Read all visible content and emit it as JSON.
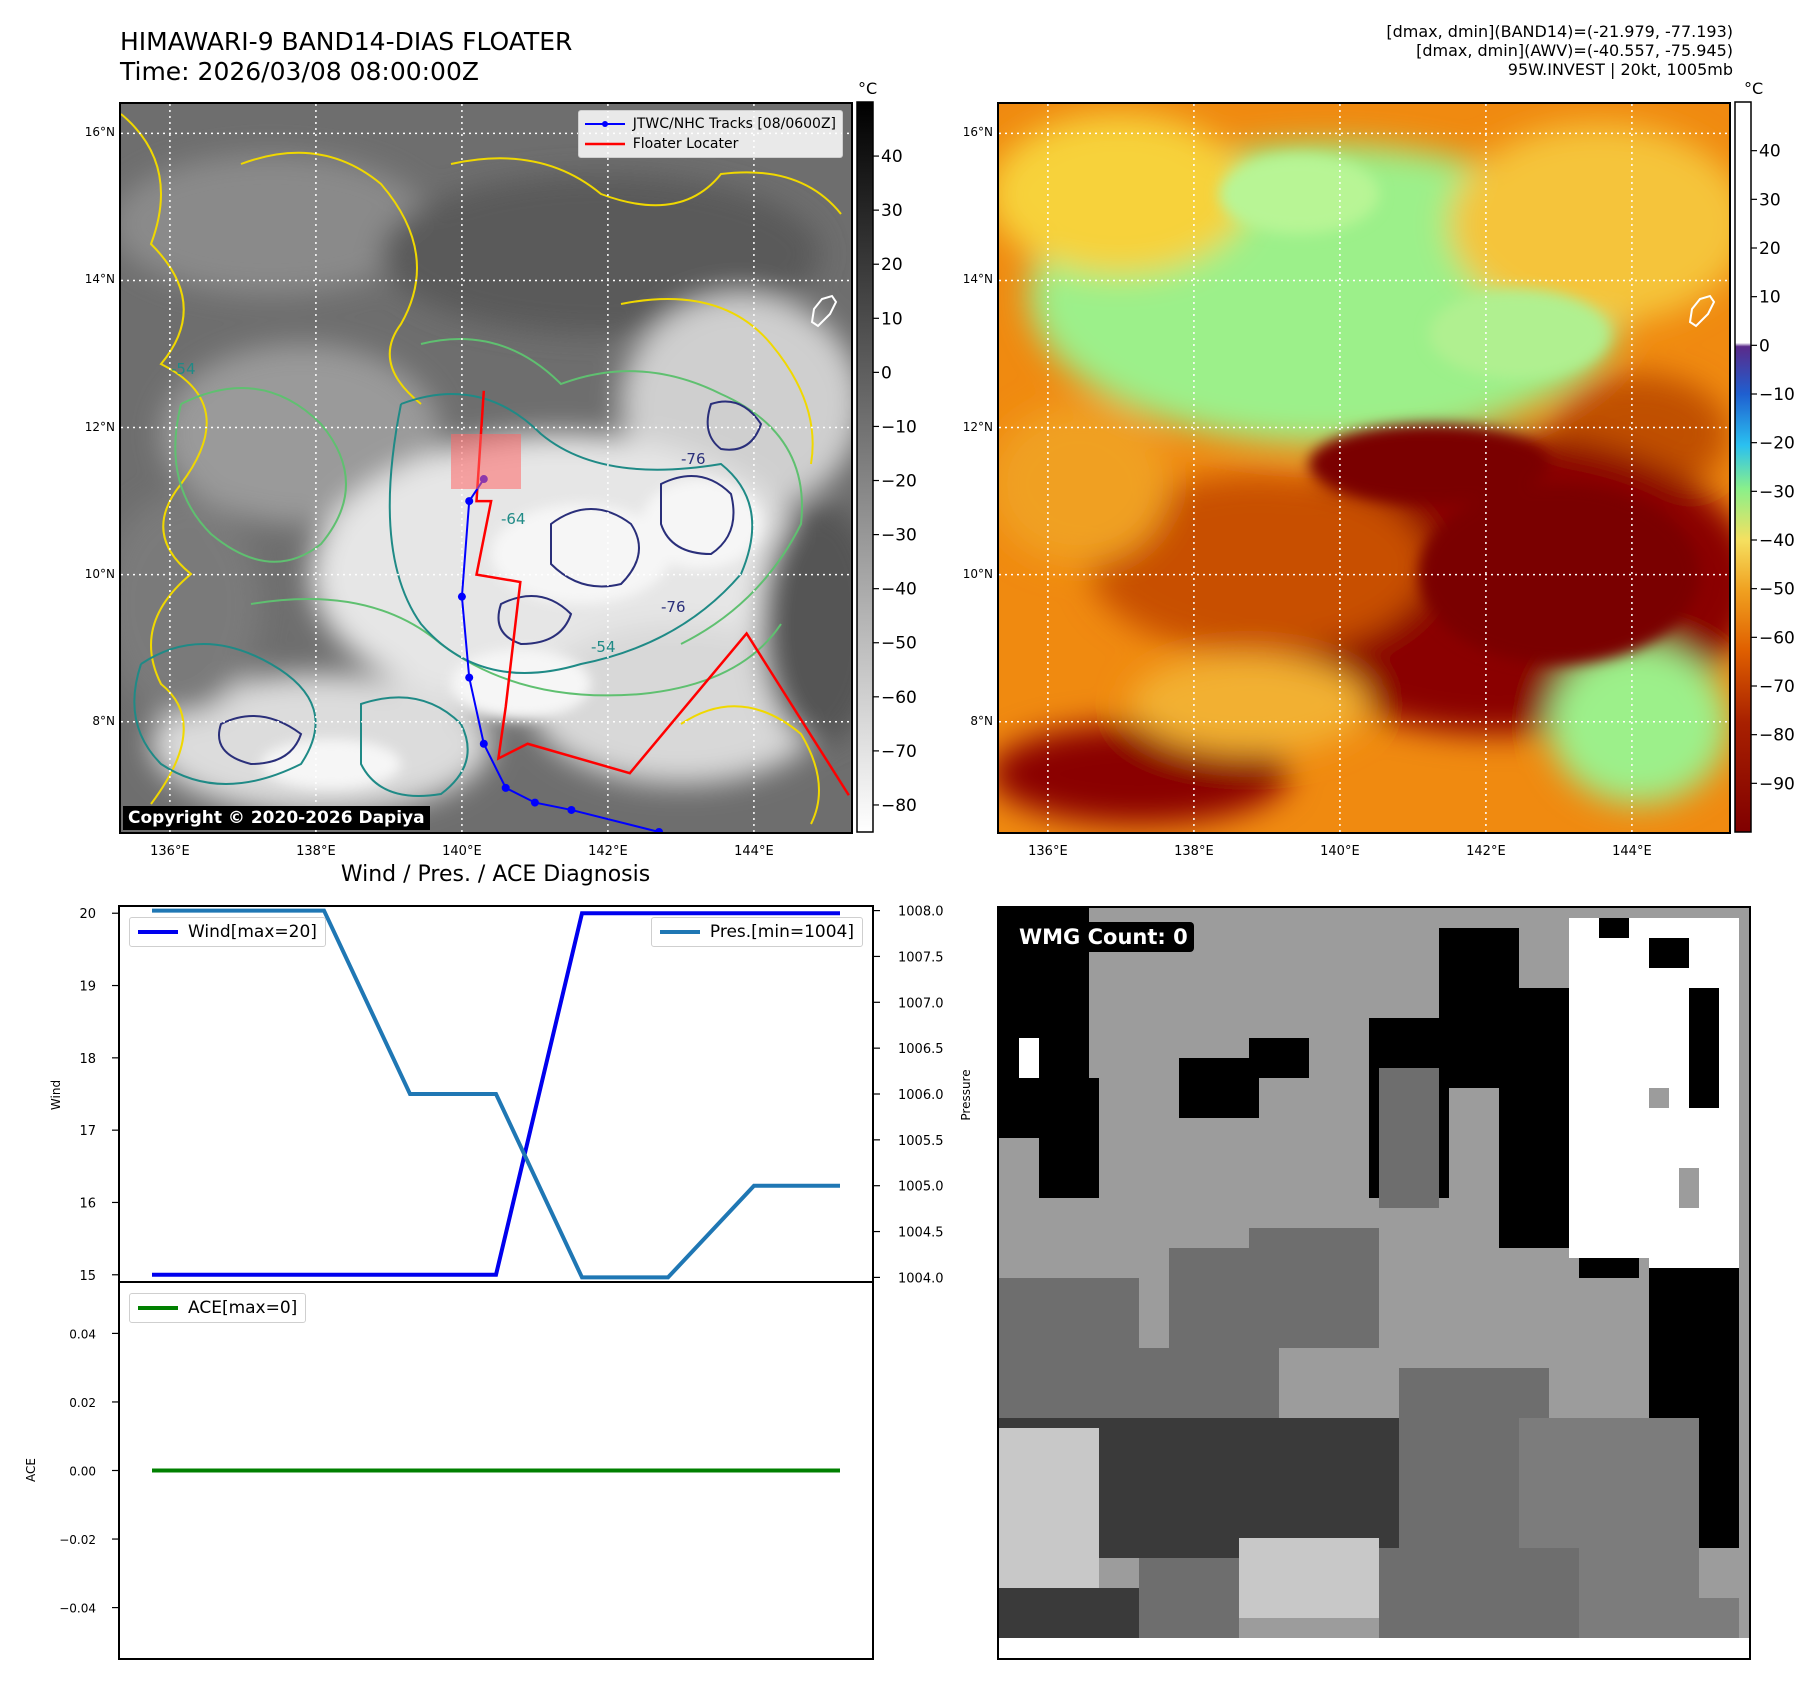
{
  "header": {
    "title": "HIMAWARI-9 BAND14-DIAS FLOATER",
    "time": "Time: 2026/03/08 08:00:00Z",
    "info_lines": [
      "[dmax, dmin](BAND14)=(-21.979, -77.193)",
      "[dmax, dmin](AWV)=(-40.557, -75.945)",
      "95W.INVEST | 20kt, 1005mb"
    ]
  },
  "map_axes": {
    "lon_labels": [
      "136°E",
      "138°E",
      "140°E",
      "142°E",
      "144°E"
    ],
    "lon_values": [
      136,
      138,
      140,
      142,
      144
    ],
    "lat_labels": [
      "16°N",
      "14°N",
      "12°N",
      "10°N",
      "8°N"
    ],
    "lat_values": [
      16,
      14,
      12,
      10,
      8
    ],
    "lon_range": [
      135.33,
      145.33
    ],
    "lat_range": [
      6.5,
      16.4
    ]
  },
  "ir_panel": {
    "legend": [
      {
        "label": "JTWC/NHC Tracks [08/0600Z]",
        "color": "#0000ff"
      },
      {
        "label": "Floater Locater",
        "color": "#ff0000"
      }
    ],
    "copyright": "Copyright © 2020-2026 Dapiya",
    "colorbar_unit": "°C",
    "colorbar_ticks": [
      "40",
      "30",
      "20",
      "10",
      "0",
      "−10",
      "−20",
      "−30",
      "−40",
      "−50",
      "−60",
      "−70",
      "−80"
    ],
    "colorbar_values": [
      40,
      30,
      20,
      10,
      0,
      -10,
      -20,
      -30,
      -40,
      -50,
      -60,
      -70,
      -80
    ],
    "colorbar_range": [
      -85,
      50
    ],
    "contour_labels": [
      "-54",
      "-64",
      "-76"
    ],
    "track_points": [
      [
        140.3,
        11.3
      ],
      [
        140.1,
        11.0
      ],
      [
        140.0,
        9.7
      ],
      [
        140.1,
        8.6
      ],
      [
        140.3,
        7.7
      ],
      [
        140.6,
        7.1
      ],
      [
        141.0,
        6.9
      ],
      [
        141.5,
        6.8
      ],
      [
        142.7,
        6.5
      ]
    ],
    "floater_track": [
      [
        140.3,
        12.5
      ],
      [
        140.2,
        11.0
      ],
      [
        140.4,
        11.0
      ],
      [
        140.2,
        10.0
      ],
      [
        140.8,
        9.9
      ],
      [
        140.6,
        8.2
      ],
      [
        140.5,
        7.5
      ],
      [
        140.9,
        7.7
      ],
      [
        142.3,
        7.3
      ],
      [
        143.9,
        9.2
      ],
      [
        145.3,
        7.0
      ]
    ],
    "colors": {
      "track": "#0000ff",
      "floater": "#ff0000",
      "contour_yellow": "#f0d800",
      "contour_green": "#5fc070",
      "contour_teal": "#1f8a86",
      "contour_navy": "#2a2f7a"
    }
  },
  "awv_panel": {
    "colorbar_unit": "°C",
    "colorbar_ticks": [
      "40",
      "30",
      "20",
      "10",
      "0",
      "−10",
      "−20",
      "−30",
      "−40",
      "−50",
      "−60",
      "−70",
      "−80",
      "−90"
    ],
    "colorbar_values": [
      40,
      30,
      20,
      10,
      0,
      -10,
      -20,
      -30,
      -40,
      -50,
      -60,
      -70,
      -80,
      -90
    ],
    "colorbar_range": [
      -100,
      50
    ]
  },
  "diagnosis": {
    "title": "Wind / Pres. / ACE Diagnosis",
    "wind_ylabel": "Wind",
    "pressure_ylabel": "Pressure",
    "ace_ylabel": "ACE",
    "wind_legend": "Wind[max=20]",
    "pressure_legend": "Pres.[min=1004]",
    "ace_legend": "ACE[max=0]",
    "colors": {
      "wind": "#0000ee",
      "pressure": "#1f77b4",
      "ace": "#008000"
    }
  },
  "chart_data": [
    {
      "type": "line",
      "title": "Wind / Pres. / ACE Diagnosis",
      "xlabel": "",
      "ylabel": "Wind",
      "y2label": "Pressure",
      "x": [
        0,
        1,
        2,
        3,
        4,
        5,
        6,
        7,
        8
      ],
      "series": [
        {
          "name": "Wind[max=20]",
          "axis": "left",
          "values": [
            15,
            15,
            15,
            15,
            15,
            20,
            20,
            20,
            20
          ]
        },
        {
          "name": "Pres.[min=1004]",
          "axis": "right",
          "values": [
            1008,
            1008,
            1008,
            1006,
            1006,
            1004,
            1004,
            1005,
            1005
          ]
        }
      ],
      "ylim": [
        14.9,
        20.1
      ],
      "yticks": [
        15,
        16,
        17,
        18,
        19,
        20
      ],
      "y2lim": [
        1003.95,
        1008.05
      ],
      "y2ticks": [
        1004.0,
        1004.5,
        1005.0,
        1005.5,
        1006.0,
        1006.5,
        1007.0,
        1007.5,
        1008.0
      ],
      "legend": "top-left / top-right"
    },
    {
      "type": "line",
      "ylabel": "ACE",
      "x": [
        0,
        1,
        2,
        3,
        4,
        5,
        6,
        7,
        8
      ],
      "series": [
        {
          "name": "ACE[max=0]",
          "values": [
            0,
            0,
            0,
            0,
            0,
            0,
            0,
            0,
            0
          ]
        }
      ],
      "ylim": [
        -0.055,
        0.055
      ],
      "yticks": [
        -0.04,
        -0.02,
        0.0,
        0.02,
        0.04
      ],
      "legend": "top-left"
    }
  ],
  "wmg_panel": {
    "badge": "WMG Count: 0"
  }
}
